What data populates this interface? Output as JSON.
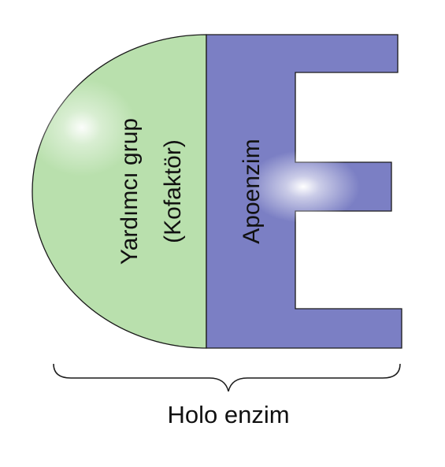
{
  "diagram": {
    "cofactor": {
      "line1": "Yardımcı grup",
      "line2": "(Kofaktör)",
      "color": "#b9e0ad"
    },
    "apoenzyme": {
      "label": "Apoenzim",
      "color": "#7b7fc4"
    },
    "holoenzyme": {
      "label": "Holo enzim"
    },
    "outline_color": "#1a1a1a"
  }
}
